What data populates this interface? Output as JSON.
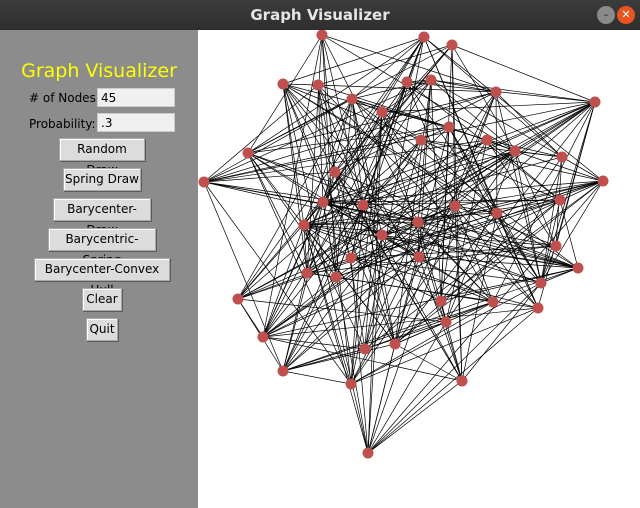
{
  "window": {
    "title": "Graph Visualizer"
  },
  "sidebar": {
    "title": "Graph Visualizer",
    "nodes_label": "# of Nodes:",
    "nodes_value": "45",
    "prob_label": "Probability:",
    "prob_value": ".3",
    "buttons": {
      "random": "Random Draw",
      "spring": "Spring Draw",
      "barycenter": "Barycenter-Draw",
      "barycentric_spring": "Barycentric-Spring",
      "convex_hull": "Barycenter-Convex Hull",
      "clear": "Clear",
      "quit": "Quit"
    }
  },
  "graph": {
    "node_color": "#c0504d",
    "edge_color": "#000000",
    "node_count": 45,
    "edge_probability": 0.3
  }
}
